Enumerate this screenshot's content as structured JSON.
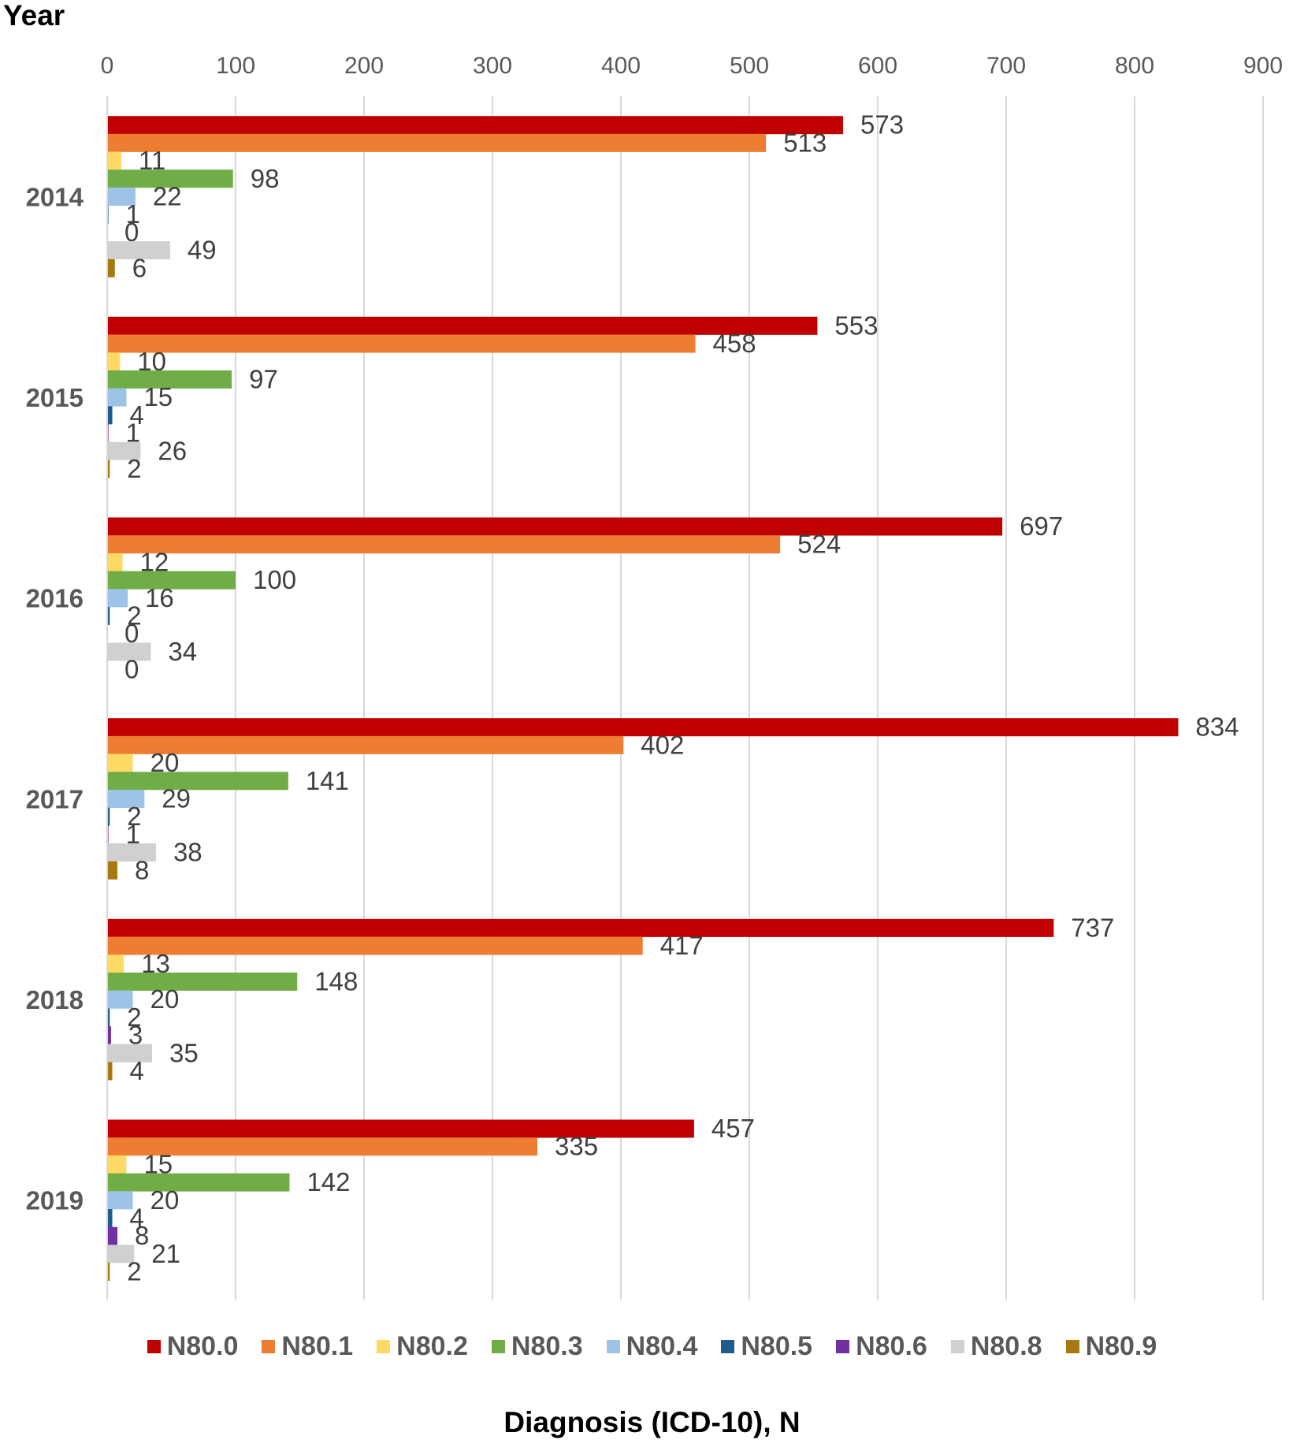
{
  "chart_data": {
    "type": "bar",
    "orientation": "horizontal",
    "title": "",
    "ylabel": "Year",
    "xlabel": "Diagnosis (ICD-10), N",
    "xlim": [
      0,
      900
    ],
    "xticks": [
      "0",
      "100",
      "200",
      "300",
      "400",
      "500",
      "600",
      "700",
      "800",
      "900"
    ],
    "grid": true,
    "legend_position": "bottom",
    "categories": [
      "2014",
      "2015",
      "2016",
      "2017",
      "2018",
      "2019"
    ],
    "series": [
      {
        "name": "N80.0",
        "color": "#c00000",
        "values": [
          573,
          553,
          697,
          834,
          737,
          457
        ]
      },
      {
        "name": "N80.1",
        "color": "#ed7d31",
        "values": [
          513,
          458,
          524,
          402,
          417,
          335
        ]
      },
      {
        "name": "N80.2",
        "color": "#ffd966",
        "values": [
          11,
          10,
          12,
          20,
          13,
          15
        ]
      },
      {
        "name": "N80.3",
        "color": "#70ad47",
        "values": [
          98,
          97,
          100,
          141,
          148,
          142
        ]
      },
      {
        "name": "N80.4",
        "color": "#9dc3e6",
        "values": [
          22,
          15,
          16,
          29,
          20,
          20
        ]
      },
      {
        "name": "N80.5",
        "color": "#1f5c8b",
        "values": [
          1,
          4,
          2,
          2,
          2,
          4
        ]
      },
      {
        "name": "N80.6",
        "color": "#7030a0",
        "values": [
          0,
          1,
          0,
          1,
          3,
          8
        ]
      },
      {
        "name": "N80.8",
        "color": "#d0d0d0",
        "values": [
          49,
          26,
          34,
          38,
          35,
          21
        ]
      },
      {
        "name": "N80.9",
        "color": "#a6780f",
        "values": [
          6,
          2,
          0,
          8,
          4,
          2
        ]
      }
    ]
  }
}
